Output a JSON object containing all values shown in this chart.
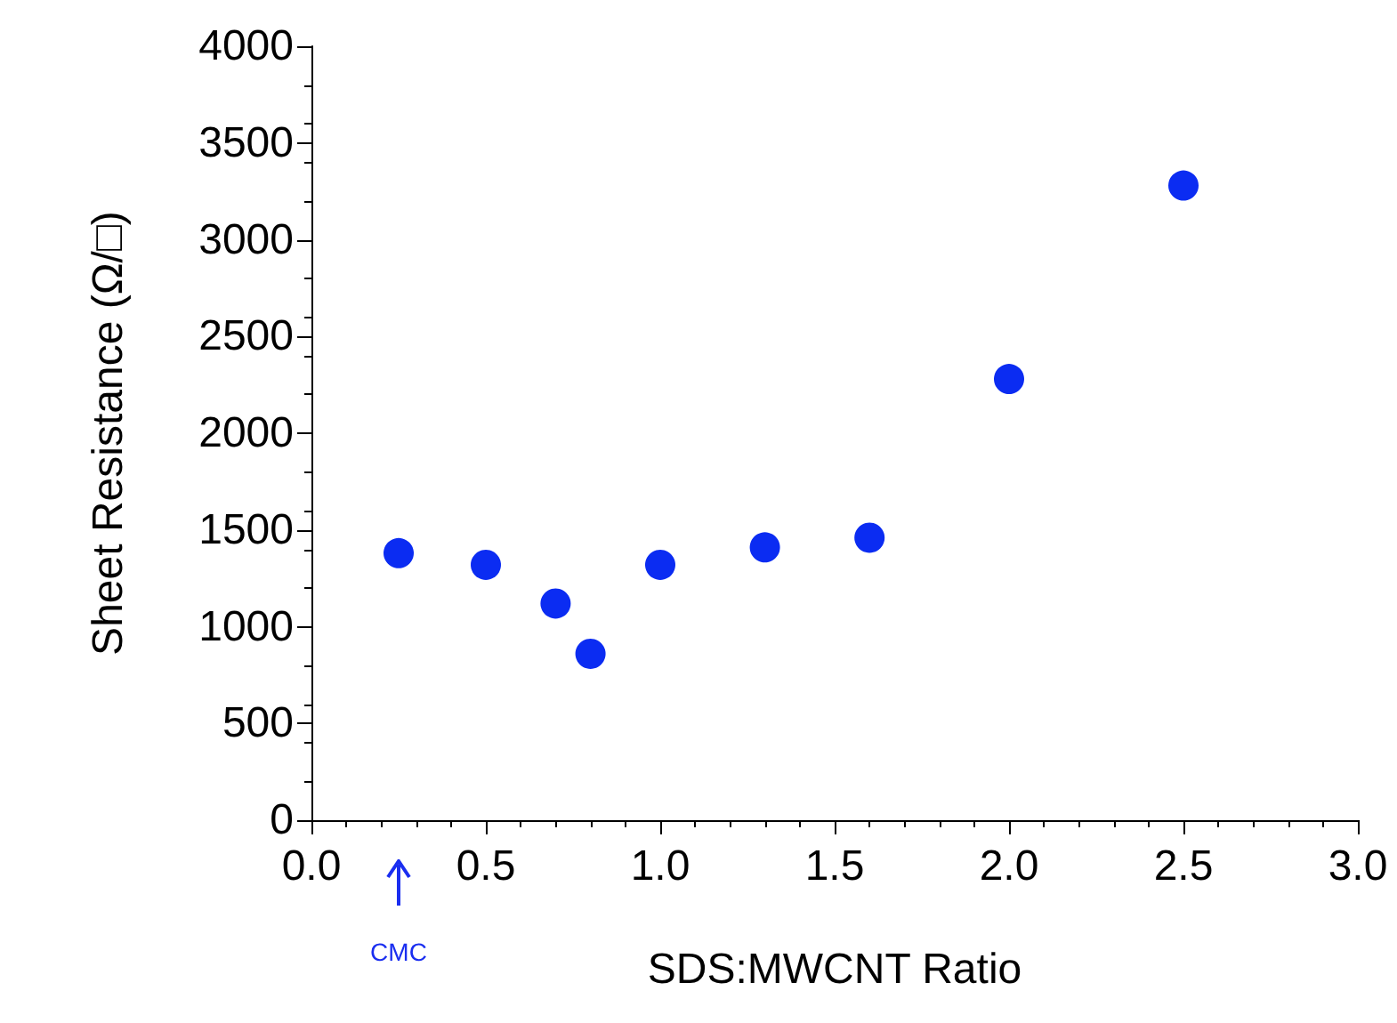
{
  "chart_data": {
    "type": "scatter",
    "xlabel": "SDS:MWCNT Ratio",
    "ylabel": "Sheet Resistance (Ω/□)",
    "x": [
      0.25,
      0.5,
      0.7,
      0.8,
      1.0,
      1.3,
      1.6,
      2.0,
      2.5
    ],
    "series": [
      {
        "color": "#0b2cf2",
        "values": [
          1380,
          1320,
          1120,
          860,
          1320,
          1410,
          1460,
          2280,
          3280
        ]
      }
    ],
    "xlim": [
      0,
      3
    ],
    "xticks": [
      {
        "value": 0,
        "label": "0.0"
      },
      {
        "value": 0.5,
        "label": "0.5"
      },
      {
        "value": 1,
        "label": "1.0"
      },
      {
        "value": 1.5,
        "label": "1.5"
      },
      {
        "value": 2,
        "label": "2.0"
      },
      {
        "value": 2.5,
        "label": "2.5"
      },
      {
        "value": 3,
        "label": "3.0"
      }
    ],
    "ylim": [
      0,
      4000
    ],
    "yticks": [
      0,
      500,
      1000,
      1500,
      2000,
      2500,
      3000,
      3500,
      4000
    ],
    "annotations": [
      "CMC"
    ],
    "grid": false,
    "marker": "circle"
  }
}
